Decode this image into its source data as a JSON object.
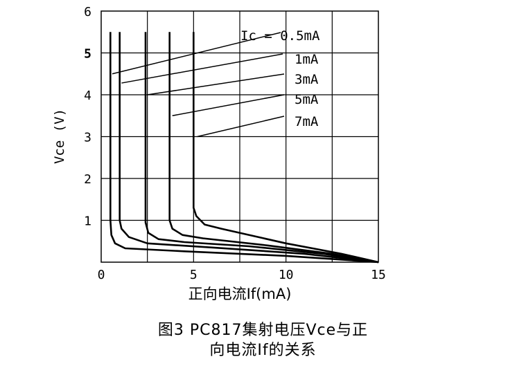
{
  "caption": {
    "line1": "图3 PC817集射电压Vce与正",
    "line2": "向电流If的关系"
  },
  "chart_data": {
    "type": "line",
    "xlabel": "正向电流If(mA)",
    "ylabel": "Vce (V)",
    "xlim": [
      0,
      15
    ],
    "ylim": [
      0,
      6
    ],
    "x_ticks": [
      "0",
      "5",
      "10",
      "15"
    ],
    "y_ticks": [
      "1",
      "2",
      "3",
      "4",
      "5",
      "6"
    ],
    "grid": true,
    "line_color": "#000000",
    "series": [
      {
        "name": "Ic = 0.5mA",
        "points": [
          [
            0.5,
            5.5
          ],
          [
            0.5,
            1.0
          ],
          [
            0.55,
            0.65
          ],
          [
            0.75,
            0.45
          ],
          [
            1.3,
            0.33
          ],
          [
            4.5,
            0.26
          ],
          [
            10,
            0.15
          ],
          [
            15,
            0.0
          ]
        ],
        "label_anchor": [
          0.6,
          4.5
        ]
      },
      {
        "name": "1mA",
        "points": [
          [
            1.0,
            5.5
          ],
          [
            1.0,
            1.0
          ],
          [
            1.1,
            0.8
          ],
          [
            1.5,
            0.6
          ],
          [
            2.5,
            0.45
          ],
          [
            6.0,
            0.35
          ],
          [
            11,
            0.2
          ],
          [
            15,
            0.0
          ]
        ],
        "label_anchor": [
          1.1,
          4.28
        ]
      },
      {
        "name": "3mA",
        "points": [
          [
            2.4,
            5.5
          ],
          [
            2.4,
            0.95
          ],
          [
            2.55,
            0.7
          ],
          [
            3.1,
            0.55
          ],
          [
            4.5,
            0.48
          ],
          [
            8.0,
            0.38
          ],
          [
            12,
            0.2
          ],
          [
            15,
            0.0
          ]
        ],
        "label_anchor": [
          2.5,
          4.0
        ]
      },
      {
        "name": "5mA",
        "points": [
          [
            3.7,
            5.5
          ],
          [
            3.7,
            1.0
          ],
          [
            3.85,
            0.8
          ],
          [
            4.4,
            0.65
          ],
          [
            5.5,
            0.57
          ],
          [
            9.0,
            0.4
          ],
          [
            12.5,
            0.2
          ],
          [
            15,
            0.0
          ]
        ],
        "label_anchor": [
          3.85,
          3.5
        ]
      },
      {
        "name": "7mA",
        "points": [
          [
            5.0,
            5.5
          ],
          [
            5.0,
            1.3
          ],
          [
            5.15,
            1.1
          ],
          [
            5.6,
            0.9
          ],
          [
            6.5,
            0.8
          ],
          [
            10.0,
            0.45
          ],
          [
            13,
            0.2
          ],
          [
            15,
            0.0
          ]
        ],
        "label_anchor": [
          5.2,
          3.0
        ]
      }
    ]
  }
}
